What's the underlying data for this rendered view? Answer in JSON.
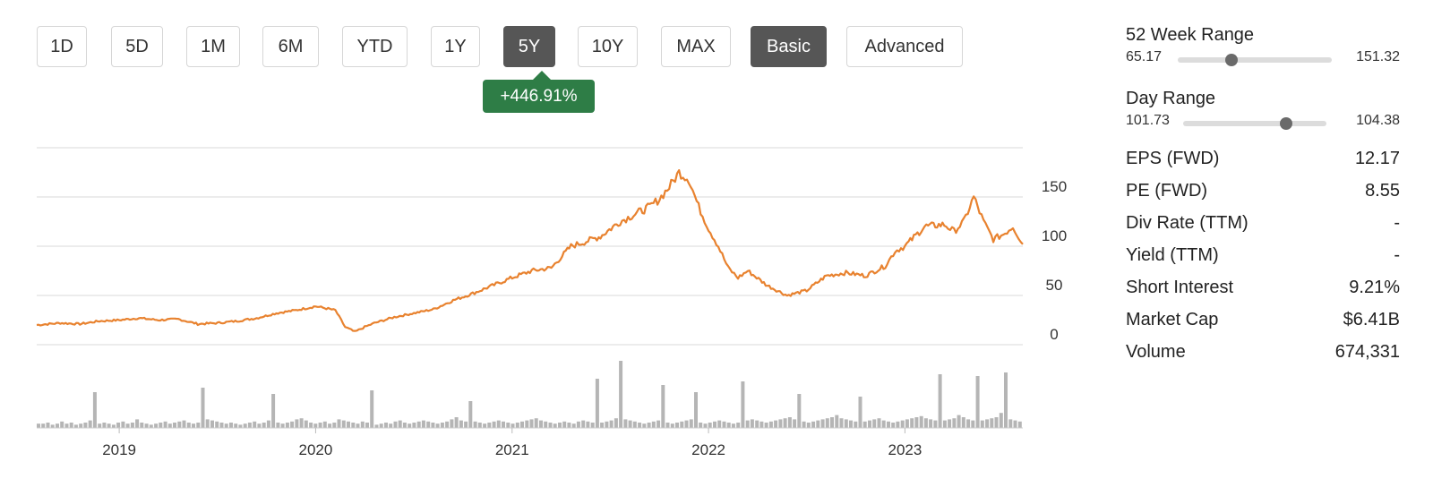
{
  "periods": [
    {
      "label": "1D",
      "active": false
    },
    {
      "label": "5D",
      "active": false
    },
    {
      "label": "1M",
      "active": false
    },
    {
      "label": "6M",
      "active": false
    },
    {
      "label": "YTD",
      "active": false
    },
    {
      "label": "1Y",
      "active": false
    },
    {
      "label": "5Y",
      "active": true
    },
    {
      "label": "10Y",
      "active": false
    },
    {
      "label": "MAX",
      "active": false
    }
  ],
  "modes": [
    {
      "label": "Basic",
      "active": true
    },
    {
      "label": "Advanced",
      "active": false
    }
  ],
  "change_badge": "+446.91%",
  "colors": {
    "line": "#e8822f",
    "volume": "#b5b5b5",
    "active_button": "#565656",
    "badge": "#2e7d46",
    "grid": "#d9d9d9"
  },
  "stats": {
    "week52": {
      "label": "52 Week Range",
      "low": "65.17",
      "high": "151.32",
      "position": 0.35
    },
    "day": {
      "label": "Day Range",
      "low": "101.73",
      "high": "104.38",
      "position": 0.72
    },
    "rows": [
      {
        "label": "EPS (FWD)",
        "value": "12.17"
      },
      {
        "label": "PE (FWD)",
        "value": "8.55"
      },
      {
        "label": "Div Rate (TTM)",
        "value": "-"
      },
      {
        "label": "Yield (TTM)",
        "value": "-"
      },
      {
        "label": "Short Interest",
        "value": "9.21%"
      },
      {
        "label": "Market Cap",
        "value": "$6.41B"
      },
      {
        "label": "Volume",
        "value": "674,331"
      }
    ]
  },
  "chart_data": {
    "type": "line",
    "ylim": [
      0,
      200
    ],
    "yticks": [
      "0",
      "50",
      "100",
      "150"
    ],
    "ytick_values": [
      0,
      50,
      100,
      150
    ],
    "xlim": [
      2018.58,
      2023.6
    ],
    "xticks": [
      "2019",
      "2020",
      "2021",
      "2022",
      "2023"
    ],
    "xtick_values": [
      2019,
      2020,
      2021,
      2022,
      2023
    ],
    "grid": true,
    "series": [
      {
        "x": [
          2018.58,
          2018.7,
          2018.8,
          2018.9,
          2019.0,
          2019.1,
          2019.2,
          2019.3,
          2019.4,
          2019.5,
          2019.6,
          2019.7,
          2019.8,
          2019.9,
          2020.0,
          2020.1,
          2020.15,
          2020.2,
          2020.25,
          2020.3,
          2020.4,
          2020.5,
          2020.6,
          2020.7,
          2020.8,
          2020.9,
          2021.0,
          2021.1,
          2021.2,
          2021.3,
          2021.35,
          2021.45,
          2021.55,
          2021.6,
          2021.7,
          2021.75,
          2021.8,
          2021.85,
          2021.9,
          2021.95,
          2022.0,
          2022.05,
          2022.1,
          2022.15,
          2022.2,
          2022.3,
          2022.4,
          2022.5,
          2022.6,
          2022.7,
          2022.8,
          2022.9,
          2022.95,
          2023.0,
          2023.1,
          2023.2,
          2023.25,
          2023.3,
          2023.35,
          2023.4,
          2023.45,
          2023.5,
          2023.55,
          2023.6
        ],
        "values": [
          20,
          22,
          21,
          24,
          25,
          27,
          25,
          26,
          21,
          22,
          24,
          27,
          32,
          35,
          39,
          35,
          18,
          13,
          18,
          22,
          28,
          32,
          36,
          45,
          52,
          60,
          68,
          75,
          78,
          100,
          103,
          110,
          125,
          130,
          140,
          148,
          160,
          175,
          168,
          140,
          118,
          100,
          78,
          68,
          75,
          60,
          50,
          55,
          70,
          73,
          70,
          80,
          95,
          100,
          120,
          122,
          115,
          125,
          150,
          125,
          107,
          112,
          120,
          102
        ]
      }
    ],
    "volume": [
      4,
      4,
      5,
      3,
      4,
      6,
      4,
      5,
      3,
      4,
      5,
      7,
      6,
      4,
      5,
      4,
      3,
      5,
      6,
      4,
      5,
      8,
      5,
      4,
      3,
      4,
      5,
      6,
      4,
      5,
      6,
      7,
      5,
      4,
      5,
      6,
      8,
      7,
      6,
      5,
      4,
      5,
      4,
      3,
      4,
      5,
      6,
      4,
      5,
      7,
      6,
      5,
      4,
      5,
      6,
      8,
      9,
      7,
      5,
      4,
      5,
      6,
      4,
      5,
      8,
      7,
      6,
      5,
      4,
      6,
      5,
      4,
      3,
      4,
      5,
      4,
      6,
      7,
      5,
      4,
      5,
      6,
      7,
      6,
      5,
      4,
      5,
      6,
      8,
      10,
      7,
      6,
      5,
      6,
      5,
      4,
      5,
      6,
      7,
      6,
      5,
      4,
      5,
      6,
      7,
      8,
      9,
      7,
      6,
      5,
      4,
      5,
      6,
      5,
      4,
      6,
      7,
      6,
      5,
      4,
      5,
      6,
      7,
      9,
      10,
      8,
      7,
      6,
      5,
      4,
      5,
      6,
      7,
      6,
      5,
      4,
      5,
      6,
      7,
      8,
      6,
      5,
      4,
      5,
      6,
      7,
      6,
      5,
      4,
      5,
      6,
      7,
      8,
      7,
      6,
      5,
      6,
      7,
      8,
      9,
      10,
      8,
      7,
      6,
      5,
      6,
      7,
      8,
      9,
      10,
      12,
      9,
      8,
      7,
      6,
      5,
      6,
      7,
      8,
      9,
      7,
      6,
      5,
      6,
      7,
      8,
      9,
      10,
      11,
      9,
      8,
      7,
      6,
      7,
      8,
      9,
      12,
      10,
      8,
      7,
      6,
      7,
      8,
      9,
      10,
      14,
      10,
      8,
      7,
      6
    ]
  }
}
